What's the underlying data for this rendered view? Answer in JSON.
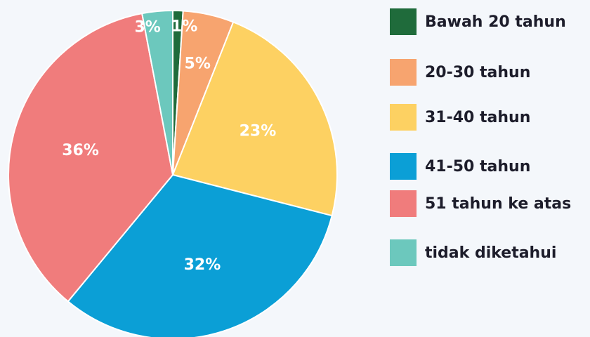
{
  "chart_data": {
    "type": "pie",
    "categories": [
      "Bawah 20 tahun",
      "20-30 tahun",
      "31-40 tahun",
      "41-50 tahun",
      "51 tahun ke atas",
      "tidak diketahui"
    ],
    "values": [
      1,
      5,
      23,
      32,
      36,
      3
    ],
    "value_labels": [
      "1%",
      "5%",
      "23%",
      "32%",
      "36%",
      "3%"
    ],
    "colors": [
      "#1f6b3b",
      "#f7a46f",
      "#fdd162",
      "#0b9fd6",
      "#f07c7c",
      "#6cc8bd"
    ],
    "legend": "right"
  }
}
